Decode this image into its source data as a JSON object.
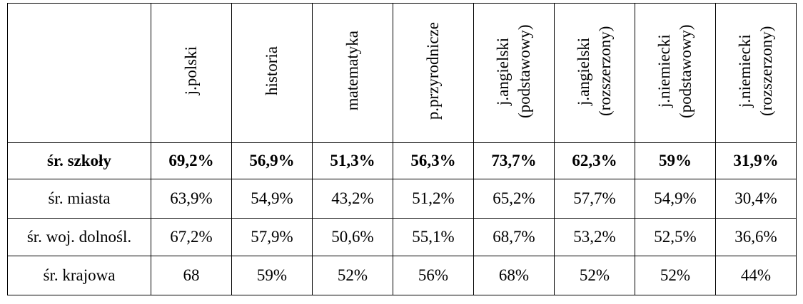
{
  "table": {
    "header": [
      "j.polski",
      "historia",
      "matematyka",
      "p.przyrodnicze",
      "j.angielski (podstawowy)",
      "j.angielski (rozszerzony)",
      "j.niemiecki (podstawowy)",
      "j.niemiecki (rozszerzony)"
    ],
    "rows": [
      [
        "śr. szkoły",
        "69,2%",
        "56,9%",
        "51,3%",
        "56,3%",
        "73,7%",
        "62,3%",
        "59%",
        "31,9%"
      ],
      [
        "śr. miasta",
        "63,9%",
        "54,9%",
        "43,2%",
        "51,2%",
        "65,2%",
        "57,7%",
        "54,9%",
        "30,4%"
      ],
      [
        "śr. woj. dolnośl.",
        "67,2%",
        "57,9%",
        "50,6%",
        "55,1%",
        "68,7%",
        "53,2%",
        "52,5%",
        "36,6%"
      ],
      [
        "śr. krajowa",
        "68",
        "59%",
        "52%",
        "56%",
        "68%",
        "52%",
        "52%",
        "44%"
      ]
    ],
    "bold_rows": [
      0
    ]
  }
}
